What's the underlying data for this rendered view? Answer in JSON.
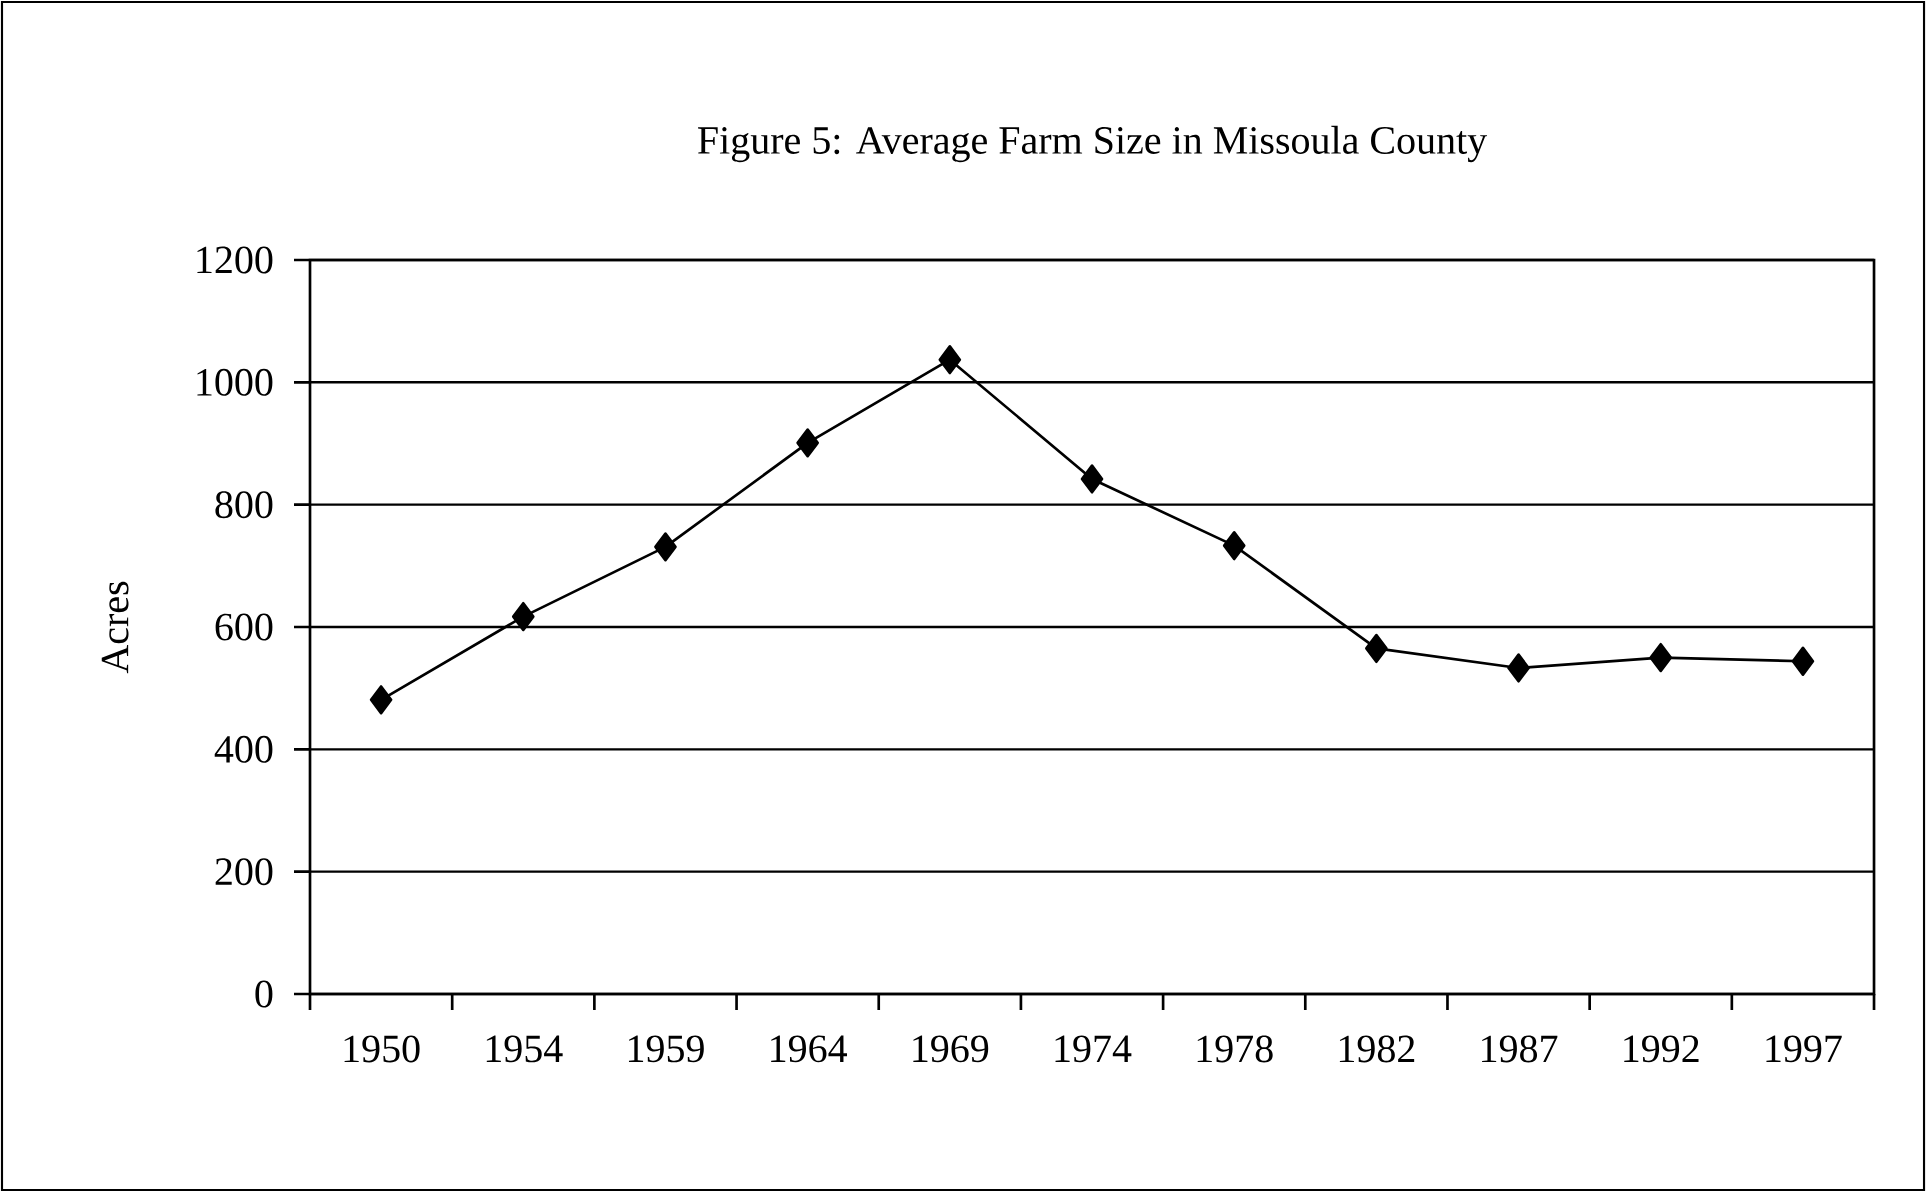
{
  "chart_data": {
    "type": "line",
    "title": "Figure 5: Average Farm Size in Missoula County",
    "ylabel": "Acres",
    "categories": [
      "1950",
      "1954",
      "1959",
      "1964",
      "1969",
      "1974",
      "1978",
      "1982",
      "1987",
      "1992",
      "1997"
    ],
    "series": [
      {
        "color": "#000000",
        "values": [
          481,
          617,
          731,
          901,
          1037,
          842,
          733,
          565,
          533,
          550,
          544
        ]
      }
    ],
    "ylim": [
      0,
      1200
    ],
    "yticks": [
      0,
      200,
      400,
      600,
      800,
      1000,
      1200
    ],
    "grid": "y",
    "marker": "diamond",
    "line_style": "solid"
  }
}
